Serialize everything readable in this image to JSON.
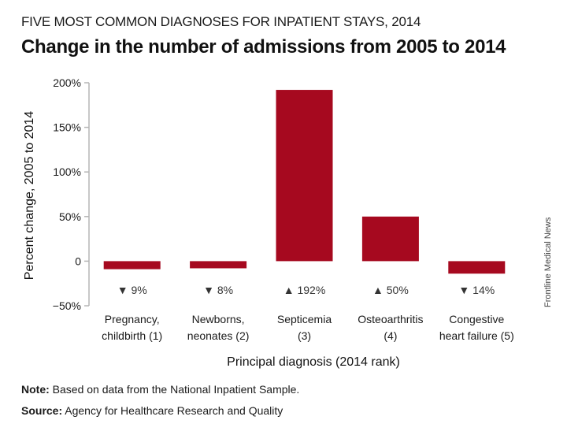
{
  "header": {
    "supertitle": "FIVE MOST COMMON DIAGNOSES FOR INPATIENT STAYS, 2014",
    "title": "Change in the number of admissions from 2005 to 2014"
  },
  "chart_data": {
    "type": "bar",
    "title": "Change in the number of admissions from 2005 to 2014",
    "xlabel": "Principal diagnosis (2014 rank)",
    "ylabel": "Percent change, 2005 to 2014",
    "ylim": [
      -50,
      200
    ],
    "yticks": [
      200,
      150,
      100,
      50,
      0,
      -50
    ],
    "ytick_labels": [
      "200%",
      "150%",
      "100%",
      "50%",
      "0",
      "−50%"
    ],
    "categories": [
      [
        "Pregnancy,",
        "childbirth (1)"
      ],
      [
        "Newborns,",
        "neonates (2)"
      ],
      [
        "Septicemia",
        "(3)"
      ],
      [
        "Osteoarthritis",
        "(4)"
      ],
      [
        "Congestive",
        "heart failure (5)"
      ]
    ],
    "values": [
      -9,
      -8,
      192,
      50,
      -14
    ],
    "data_labels": [
      "▼ 9%",
      "▼ 8%",
      "▲ 192%",
      "▲ 50%",
      "▼ 14%"
    ],
    "bar_color": "#a6091f",
    "axis_color": "#b5b5b5",
    "grid": false
  },
  "footer": {
    "note_label": "Note:",
    "note_text": " Based on data from the National Inpatient Sample.",
    "source_label": "Source:",
    "source_text": " Agency for Healthcare Research and Quality"
  },
  "watermark": "Frontline Medical News"
}
